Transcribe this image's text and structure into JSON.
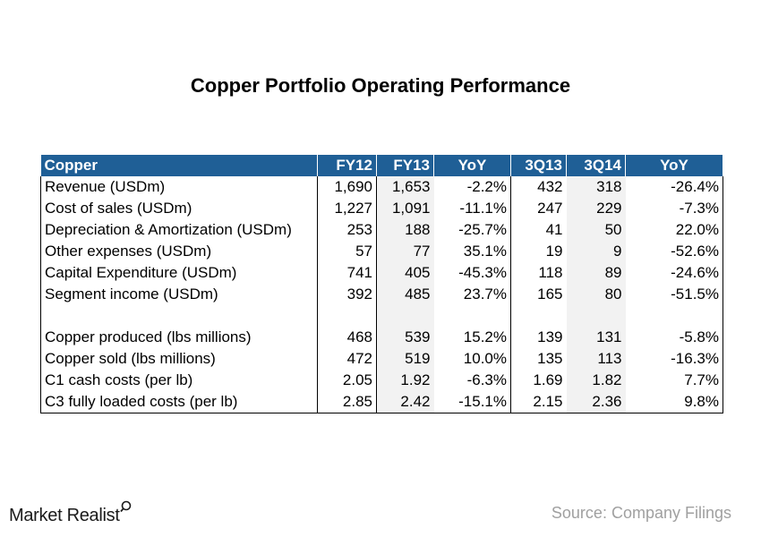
{
  "chart_data": {
    "type": "table",
    "title": "Copper Portfolio Operating Performance",
    "columns": [
      "Copper",
      "FY12",
      "FY13",
      "YoY",
      "3Q13",
      "3Q14",
      "YoY"
    ],
    "rows": [
      {
        "label": "Revenue (USDm)",
        "values": [
          "1,690",
          "1,653",
          "-2.2%",
          "432",
          "318",
          "-26.4%"
        ]
      },
      {
        "label": "Cost of sales (USDm)",
        "values": [
          "1,227",
          "1,091",
          "-11.1%",
          "247",
          "229",
          "-7.3%"
        ]
      },
      {
        "label": "Depreciation & Amortization (USDm)",
        "values": [
          "253",
          "188",
          "-25.7%",
          "41",
          "50",
          "22.0%"
        ]
      },
      {
        "label": "Other expenses (USDm)",
        "values": [
          "57",
          "77",
          "35.1%",
          "19",
          "9",
          "-52.6%"
        ]
      },
      {
        "label": "Capital Expenditure (USDm)",
        "values": [
          "741",
          "405",
          "-45.3%",
          "118",
          "89",
          "-24.6%"
        ]
      },
      {
        "label": "Segment income (USDm)",
        "values": [
          "392",
          "485",
          "23.7%",
          "165",
          "80",
          "-51.5%"
        ]
      },
      {
        "label": "",
        "values": [
          "",
          "",
          "",
          "",
          "",
          ""
        ]
      },
      {
        "label": "Copper produced (lbs millions)",
        "values": [
          "468",
          "539",
          "15.2%",
          "139",
          "131",
          "-5.8%"
        ]
      },
      {
        "label": "Copper sold (lbs millions)",
        "values": [
          "472",
          "519",
          "10.0%",
          "135",
          "113",
          "-16.3%"
        ]
      },
      {
        "label": "C1 cash costs (per lb)",
        "values": [
          "2.05",
          "1.92",
          "-6.3%",
          "1.69",
          "1.82",
          "7.7%"
        ]
      },
      {
        "label": "C3 fully loaded costs (per lb)",
        "values": [
          "2.85",
          "2.42",
          "-15.1%",
          "2.15",
          "2.36",
          "9.8%"
        ]
      }
    ],
    "header_color": "#1f5f96",
    "shade_color": "#f2f2f2"
  },
  "footer": {
    "logo": "Market Realist",
    "source": "Source: Company Filings"
  }
}
